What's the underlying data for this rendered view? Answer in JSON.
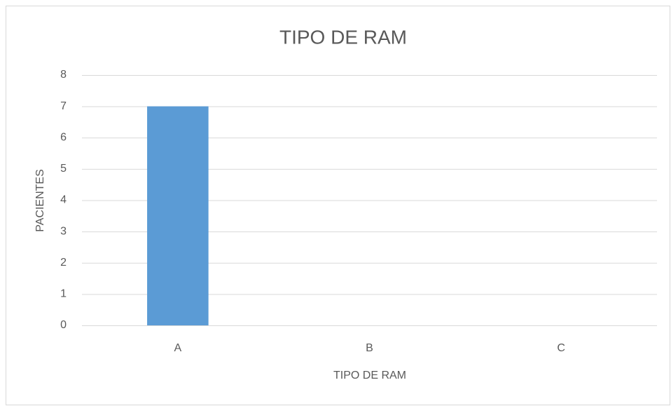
{
  "chart_data": {
    "type": "bar",
    "title": "TIPO DE RAM",
    "x_label": "TIPO DE RAM",
    "y_label": "PACIENTES",
    "categories": [
      "A",
      "B",
      "C"
    ],
    "values": [
      7,
      0,
      0
    ],
    "color": "#5b9bd5",
    "ylim": [
      0,
      8
    ],
    "yticks": [
      0,
      1,
      2,
      3,
      4,
      5,
      6,
      7,
      8
    ],
    "grid": true
  }
}
